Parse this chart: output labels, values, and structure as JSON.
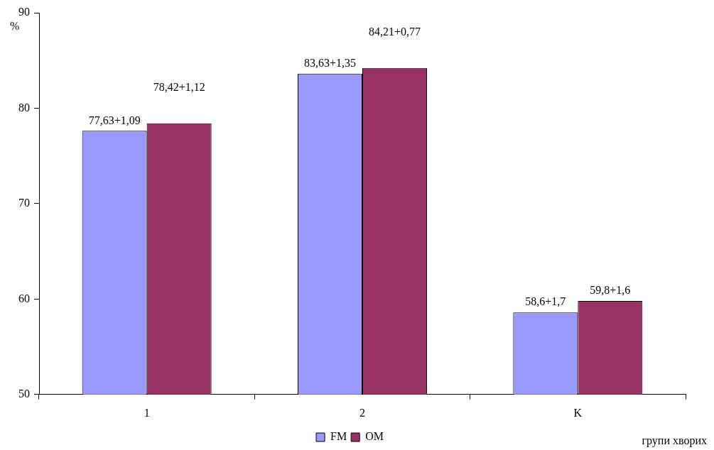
{
  "chart_data": {
    "type": "bar",
    "xlabel": "групи хворих",
    "ylabel": "%",
    "categories": [
      "1",
      "2",
      "K"
    ],
    "series": [
      {
        "name": "FM",
        "color": "#9999ff",
        "values": [
          77.63,
          83.63,
          58.6
        ],
        "value_labels": [
          "77,63+1,09",
          "83,63+1,35",
          "58,6+1,7"
        ]
      },
      {
        "name": "OM",
        "color": "#993366",
        "values": [
          78.42,
          84.21,
          59.8
        ],
        "value_labels": [
          "78,42+1,12",
          "84,21+0,77",
          "59,8+1,6"
        ]
      }
    ],
    "ylim": [
      50,
      90
    ],
    "yticks": [
      50,
      60,
      70,
      80,
      90
    ],
    "grid": false,
    "legend": "bottom"
  }
}
